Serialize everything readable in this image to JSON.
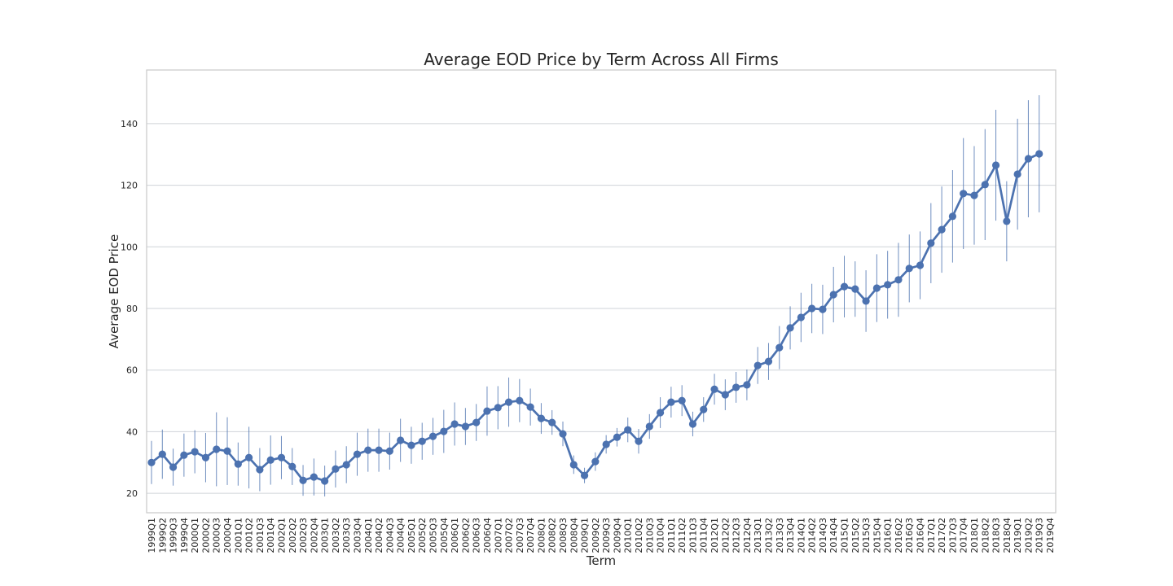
{
  "chart_data": {
    "type": "line",
    "title": "Average EOD Price by Term Across All Firms",
    "x_label": "Term",
    "y_label": "Average EOD Price",
    "categories": [
      "1999Q1",
      "1999Q2",
      "1999Q3",
      "1999Q4",
      "2000Q1",
      "2000Q2",
      "2000Q3",
      "2000Q4",
      "2001Q1",
      "2001Q2",
      "2001Q3",
      "2001Q4",
      "2002Q1",
      "2002Q2",
      "2002Q3",
      "2002Q4",
      "2003Q1",
      "2003Q2",
      "2003Q3",
      "2003Q4",
      "2004Q1",
      "2004Q2",
      "2004Q3",
      "2004Q4",
      "2005Q1",
      "2005Q2",
      "2005Q3",
      "2005Q4",
      "2006Q1",
      "2006Q2",
      "2006Q3",
      "2006Q4",
      "2007Q1",
      "2007Q2",
      "2007Q3",
      "2007Q4",
      "2008Q1",
      "2008Q2",
      "2008Q3",
      "2008Q4",
      "2009Q1",
      "2009Q2",
      "2009Q3",
      "2009Q4",
      "2010Q1",
      "2010Q2",
      "2010Q3",
      "2010Q4",
      "2011Q1",
      "2011Q2",
      "2011Q3",
      "2011Q4",
      "2012Q1",
      "2012Q2",
      "2012Q3",
      "2012Q4",
      "2013Q1",
      "2013Q2",
      "2013Q3",
      "2013Q4",
      "2014Q1",
      "2014Q2",
      "2014Q3",
      "2014Q4",
      "2015Q1",
      "2015Q2",
      "2015Q3",
      "2015Q4",
      "2016Q1",
      "2016Q2",
      "2016Q3",
      "2016Q4",
      "2017Q1",
      "2017Q2",
      "2017Q3",
      "2017Q4",
      "2018Q1",
      "2018Q2",
      "2018Q3",
      "2018Q4",
      "2019Q1",
      "2019Q2",
      "2019Q3",
      "2019Q4"
    ],
    "values": [
      30.0,
      32.7,
      28.5,
      32.4,
      33.5,
      31.6,
      34.3,
      33.7,
      29.5,
      31.6,
      27.7,
      30.8,
      31.6,
      28.7,
      24.2,
      25.3,
      24.0,
      27.9,
      29.3,
      32.7,
      34.0,
      34.0,
      33.7,
      37.2,
      35.6,
      36.9,
      38.5,
      40.1,
      42.5,
      41.7,
      43.0,
      46.7,
      47.8,
      49.6,
      50.1,
      48.0,
      44.3,
      43.0,
      39.3,
      29.3,
      25.8,
      30.3,
      35.9,
      38.2,
      40.6,
      36.9,
      41.7,
      46.2,
      49.6,
      50.1,
      42.5,
      47.2,
      53.8,
      52.0,
      54.4,
      55.2,
      61.5,
      62.8,
      67.3,
      73.7,
      77.1,
      80.0,
      79.7,
      84.5,
      87.1,
      86.3,
      82.4,
      86.6,
      87.7,
      89.3,
      93.0,
      94.0,
      101.2,
      105.6,
      109.9,
      117.3,
      116.7,
      120.2,
      126.5,
      108.3,
      123.6,
      128.6,
      130.2,
      null
    ],
    "errors": [
      7,
      8,
      6,
      7,
      7,
      8,
      12,
      11,
      7,
      10,
      7,
      8,
      7,
      6,
      5,
      6,
      5,
      6,
      6,
      7,
      7,
      7,
      6,
      7,
      6,
      6,
      6,
      7,
      7,
      6,
      6,
      8,
      7,
      8,
      7,
      6,
      5,
      4,
      4,
      3,
      2.5,
      3,
      3,
      3,
      4,
      4,
      4,
      5,
      5,
      5,
      4,
      4,
      5,
      5,
      5,
      5,
      6,
      6,
      7,
      7,
      8,
      8,
      8,
      9,
      10,
      9,
      10,
      11,
      11,
      12,
      11,
      11,
      13,
      14,
      15,
      18,
      16,
      18,
      18,
      13,
      18,
      19,
      19,
      null
    ],
    "color": "#4c72b0",
    "ylim": [
      13.7,
      157.4
    ],
    "yticks": [
      20,
      40,
      60,
      80,
      100,
      120,
      140
    ],
    "grid": true
  }
}
